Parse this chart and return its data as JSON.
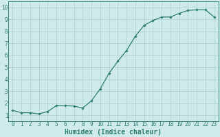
{
  "x": [
    0,
    1,
    2,
    3,
    4,
    5,
    6,
    7,
    8,
    9,
    10,
    11,
    12,
    13,
    14,
    15,
    16,
    17,
    18,
    19,
    20,
    21,
    22,
    23
  ],
  "y": [
    1.4,
    1.2,
    1.2,
    1.1,
    1.3,
    1.8,
    1.8,
    1.75,
    1.6,
    2.2,
    3.2,
    4.5,
    5.5,
    6.4,
    7.6,
    8.5,
    8.9,
    9.2,
    9.2,
    9.5,
    9.75,
    9.8,
    9.8,
    9.2
  ],
  "line_color": "#2e7d6e",
  "marker": "D",
  "markersize": 1.8,
  "linewidth": 0.9,
  "xlabel": "Humidex (Indice chaleur)",
  "xlim": [
    -0.5,
    23.5
  ],
  "ylim": [
    0.5,
    10.5
  ],
  "yticks": [
    1,
    2,
    3,
    4,
    5,
    6,
    7,
    8,
    9,
    10
  ],
  "xticks": [
    0,
    1,
    2,
    3,
    4,
    5,
    6,
    7,
    8,
    9,
    10,
    11,
    12,
    13,
    14,
    15,
    16,
    17,
    18,
    19,
    20,
    21,
    22,
    23
  ],
  "xtick_labels": [
    "0",
    "1",
    "2",
    "3",
    "4",
    "5",
    "6",
    "7",
    "8",
    "9",
    "10",
    "11",
    "12",
    "13",
    "14",
    "15",
    "16",
    "17",
    "18",
    "19",
    "20",
    "21",
    "22",
    "23"
  ],
  "bg_color": "#ceeaeb",
  "grid_color": "#aad0d0",
  "line_bg": "#ceeaeb",
  "tick_color": "#2e7d6e",
  "label_color": "#2e7d6e",
  "tick_fontsize": 5.5,
  "xlabel_fontsize": 7.0
}
